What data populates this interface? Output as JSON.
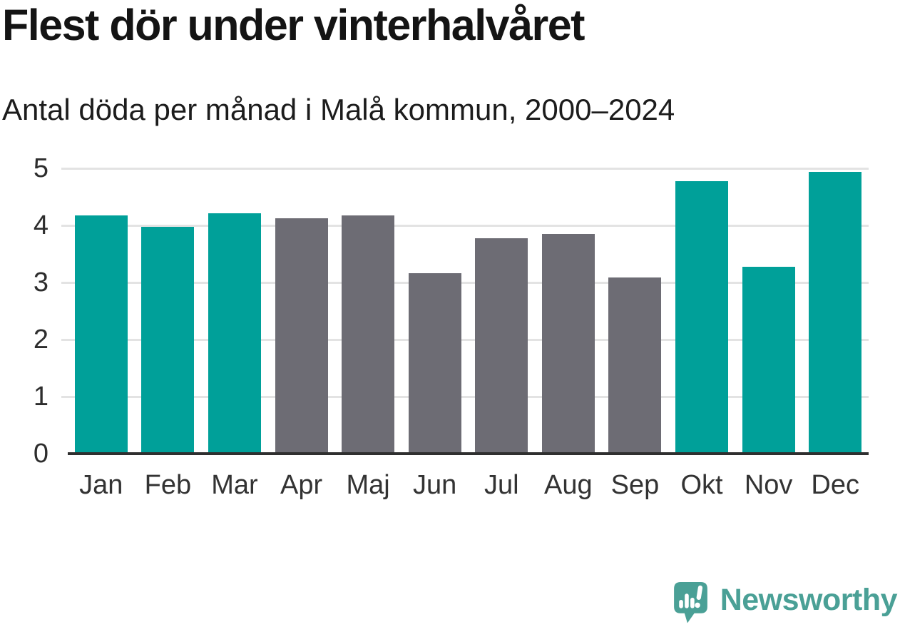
{
  "header": {
    "title": "Flest dör under vinterhalvåret",
    "subtitle": "Antal döda per månad i Malå kommun, 2000–2024"
  },
  "chart_data": {
    "type": "bar",
    "title": "Flest dör under vinterhalvåret",
    "subtitle": "Antal döda per månad i Malå kommun, 2000–2024",
    "categories": [
      "Jan",
      "Feb",
      "Mar",
      "Apr",
      "Maj",
      "Jun",
      "Jul",
      "Aug",
      "Sep",
      "Okt",
      "Nov",
      "Dec"
    ],
    "values": [
      4.17,
      3.97,
      4.21,
      4.12,
      4.17,
      3.16,
      3.77,
      3.85,
      3.09,
      4.78,
      3.28,
      4.94
    ],
    "bar_color_keys": [
      "winter",
      "winter",
      "winter",
      "summer",
      "summer",
      "summer",
      "summer",
      "summer",
      "summer",
      "winter",
      "winter",
      "winter"
    ],
    "palette": {
      "winter": "#00a099",
      "summer": "#6d6c74"
    },
    "xlabel": "",
    "ylabel": "",
    "ylim": [
      0,
      5
    ],
    "yticks": [
      0,
      1,
      2,
      3,
      4,
      5
    ],
    "grid": "horizontal",
    "legend": "none",
    "gridline_color": "#e3e3e3",
    "axis_color": "#2f2f2f"
  },
  "footer": {
    "brand": "Newsworthy",
    "brand_color": "#4aa096",
    "logo_icon": "bar-chart-exclamation-bubble-icon"
  }
}
